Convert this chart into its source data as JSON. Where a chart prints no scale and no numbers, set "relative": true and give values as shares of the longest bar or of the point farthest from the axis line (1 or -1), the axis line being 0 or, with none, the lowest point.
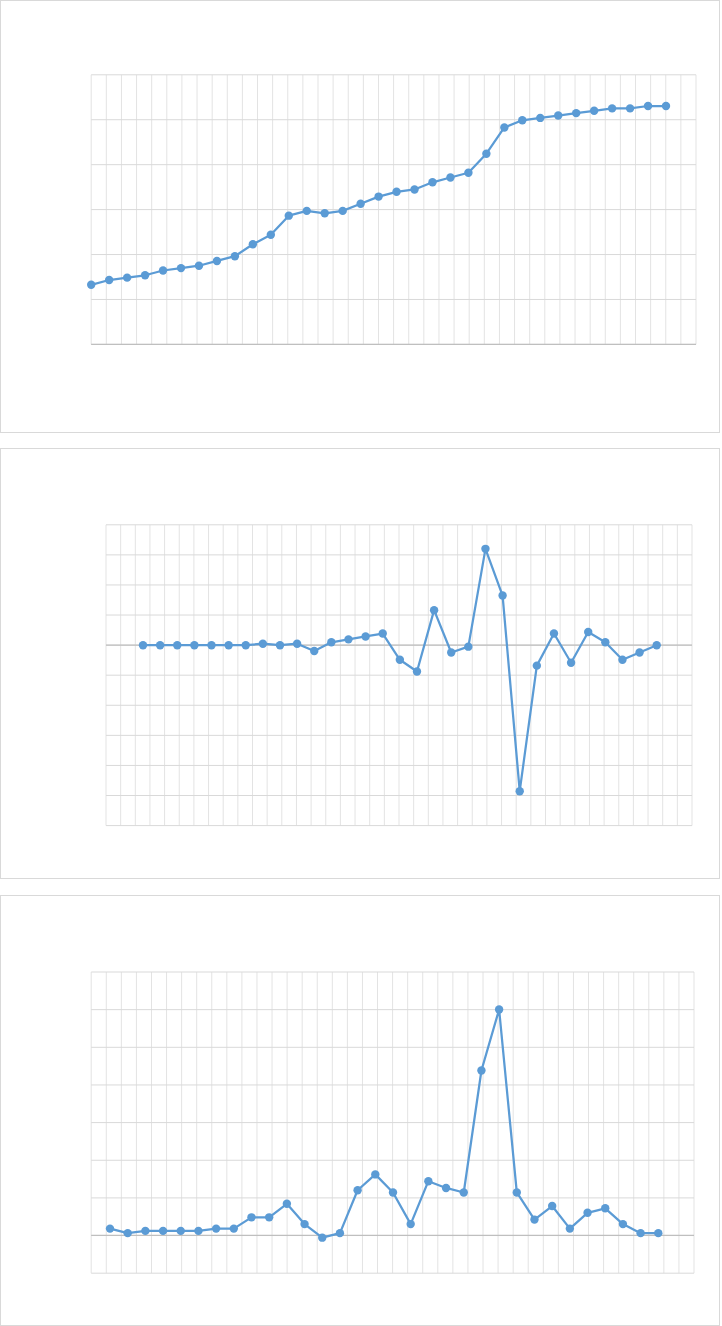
{
  "chart_data": [
    {
      "type": "line",
      "relative": true,
      "color": "#5b9bd5",
      "marker": "circle",
      "line_style": "solid",
      "grid": true,
      "categories": [
        null,
        null,
        null,
        null,
        null,
        null,
        null,
        null,
        null,
        null,
        null,
        null,
        null,
        null,
        null,
        null,
        null,
        null,
        null,
        null,
        null,
        null,
        null,
        null,
        null,
        null,
        null,
        null,
        null,
        null,
        null,
        null,
        null
      ],
      "values": [
        0.25,
        0.27,
        0.28,
        0.29,
        0.31,
        0.32,
        0.33,
        0.35,
        0.37,
        0.42,
        0.46,
        0.54,
        0.56,
        0.55,
        0.56,
        0.59,
        0.62,
        0.64,
        0.65,
        0.68,
        0.7,
        0.72,
        0.8,
        0.91,
        0.94,
        0.95,
        0.96,
        0.97,
        0.98,
        0.99,
        0.99,
        1,
        1
      ]
    },
    {
      "type": "line",
      "relative": true,
      "color": "#5b9bd5",
      "marker": "circle",
      "line_style": "solid",
      "grid": true,
      "categories": [
        null,
        null,
        null,
        null,
        null,
        null,
        null,
        null,
        null,
        null,
        null,
        null,
        null,
        null,
        null,
        null,
        null,
        null,
        null,
        null,
        null,
        null,
        null,
        null,
        null,
        null,
        null,
        null,
        null,
        null,
        null
      ],
      "values": [
        0,
        0,
        0,
        0,
        0,
        0,
        0,
        0.01,
        0,
        0.01,
        -0.04,
        0.02,
        0.04,
        0.06,
        0.08,
        -0.1,
        -0.18,
        0.24,
        -0.05,
        -0.01,
        0.66,
        0.34,
        -1,
        -0.14,
        0.08,
        -0.12,
        0.09,
        0.02,
        -0.1,
        -0.05,
        0
      ]
    },
    {
      "type": "line",
      "relative": true,
      "color": "#5b9bd5",
      "marker": "circle",
      "line_style": "solid",
      "grid": true,
      "categories": [
        null,
        null,
        null,
        null,
        null,
        null,
        null,
        null,
        null,
        null,
        null,
        null,
        null,
        null,
        null,
        null,
        null,
        null,
        null,
        null,
        null,
        null,
        null,
        null,
        null,
        null,
        null,
        null,
        null,
        null,
        null,
        null
      ],
      "values": [
        0.03,
        0.01,
        0.02,
        0.02,
        0.02,
        0.02,
        0.03,
        0.03,
        0.08,
        0.08,
        0.14,
        0.05,
        -0.01,
        0.01,
        0.2,
        0.27,
        0.19,
        0.05,
        0.24,
        0.21,
        0.19,
        0.73,
        1,
        0.19,
        0.07,
        0.13,
        0.03,
        0.1,
        0.12,
        0.05,
        0.01,
        0.01
      ]
    }
  ]
}
